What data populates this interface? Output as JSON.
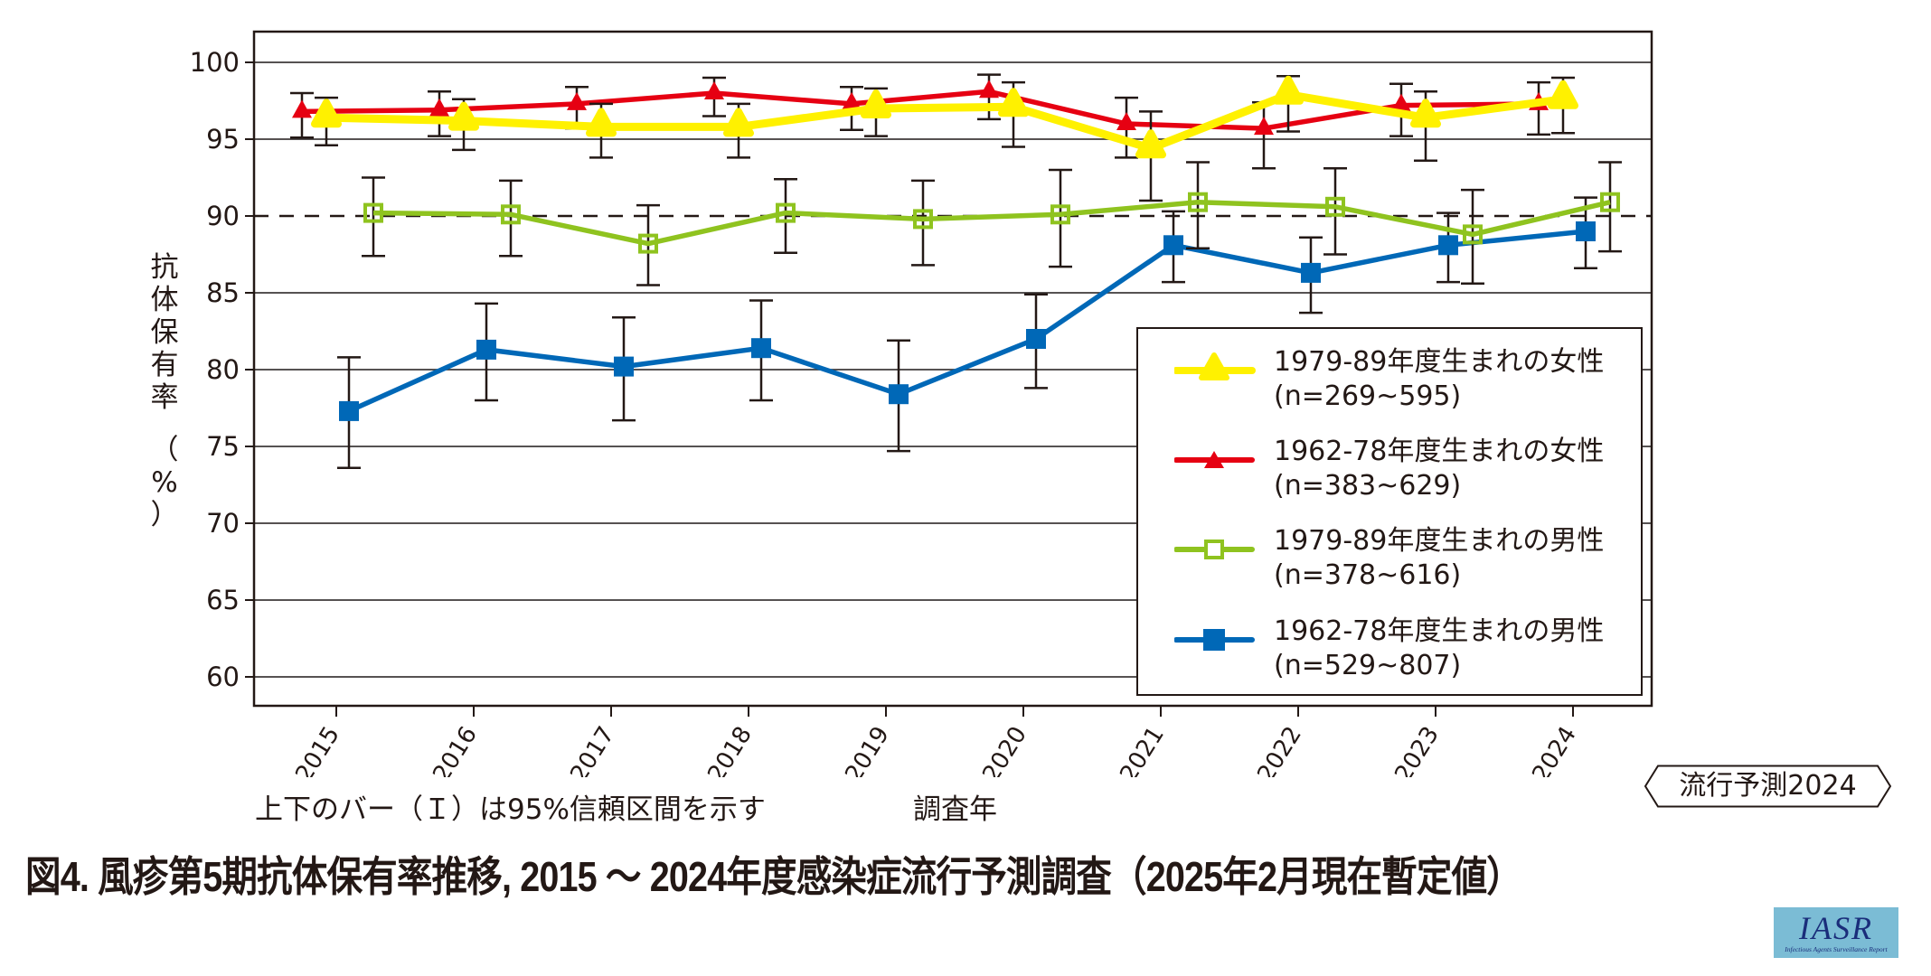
{
  "chart_data": {
    "type": "line",
    "title": "図4. 風疹第5期抗体保有率推移, 2015 ～ 2024年度感染症流行予測調査（2025年2月現在暫定値）",
    "xlabel": "調査年",
    "ylabel": "抗体保有率（%）",
    "ylabel_chars": [
      "抗",
      "体",
      "保",
      "有",
      "率",
      "（",
      "%",
      "）"
    ],
    "x": [
      "2015",
      "2016",
      "2017",
      "2018",
      "2019",
      "2020",
      "2021",
      "2022",
      "2023",
      "2024"
    ],
    "ylim": [
      58,
      102
    ],
    "yticks": [
      60,
      65,
      70,
      75,
      80,
      85,
      90,
      95,
      100
    ],
    "reference_line": 90,
    "grid": true,
    "legend_position": "bottom-right",
    "footnote": "上下のバー（Ｉ）は95%信頼区間を示す",
    "series": [
      {
        "name": "1979-89年度生まれの女性",
        "n": "(n=269~595)",
        "color": "#fff100",
        "marker": "triangle-large",
        "values": [
          96.4,
          96.2,
          95.8,
          95.8,
          97.0,
          97.1,
          94.4,
          97.9,
          96.4,
          97.6
        ],
        "ci_low": [
          94.6,
          94.3,
          93.8,
          93.8,
          95.2,
          94.5,
          91.0,
          95.5,
          93.6,
          95.4
        ],
        "ci_high": [
          97.7,
          97.6,
          97.3,
          97.3,
          98.3,
          98.7,
          96.8,
          99.1,
          98.1,
          99.0
        ]
      },
      {
        "name": "1962-78年度生まれの女性",
        "n": "(n=383~629)",
        "color": "#e60012",
        "marker": "triangle",
        "values": [
          96.8,
          96.9,
          97.3,
          98.0,
          97.3,
          98.1,
          96.0,
          95.7,
          97.2,
          97.3
        ],
        "ci_low": [
          95.1,
          95.2,
          95.7,
          96.5,
          95.6,
          96.3,
          93.8,
          93.1,
          95.2,
          95.3
        ],
        "ci_high": [
          98.0,
          98.1,
          98.4,
          99.0,
          98.4,
          99.2,
          97.7,
          97.4,
          98.6,
          98.7
        ]
      },
      {
        "name": "1979-89年度生まれの男性",
        "n": "(n=378~616)",
        "color": "#8fc31f",
        "marker": "square-open",
        "values": [
          90.2,
          90.1,
          88.2,
          90.2,
          89.8,
          90.1,
          90.9,
          90.6,
          88.8,
          90.9
        ],
        "ci_low": [
          87.4,
          87.4,
          85.5,
          87.6,
          86.8,
          86.7,
          87.9,
          87.5,
          85.6,
          87.7
        ],
        "ci_high": [
          92.5,
          92.3,
          90.7,
          92.4,
          92.3,
          93.0,
          93.5,
          93.1,
          91.7,
          93.5
        ]
      },
      {
        "name": "1962-78年度生まれの男性",
        "n": "(n=529~807)",
        "color": "#0068b7",
        "marker": "square",
        "values": [
          77.3,
          81.3,
          80.2,
          81.4,
          78.4,
          82.0,
          88.1,
          86.3,
          88.1,
          89.0
        ],
        "ci_low": [
          73.6,
          78.0,
          76.7,
          78.0,
          74.7,
          78.8,
          85.7,
          83.7,
          85.7,
          86.6
        ],
        "ci_high": [
          80.8,
          84.3,
          83.4,
          84.5,
          81.9,
          84.9,
          90.3,
          88.6,
          90.2,
          91.2
        ]
      }
    ]
  },
  "badge": {
    "label": "流行予測2024"
  },
  "logo": {
    "main": "IASR",
    "sub": "Infectious Agents Surveillance Report"
  }
}
